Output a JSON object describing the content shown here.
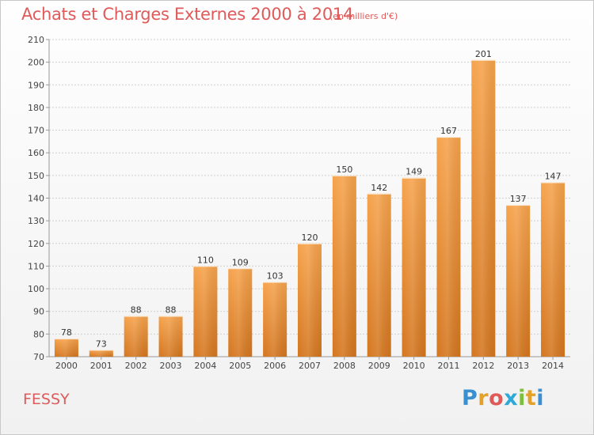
{
  "header": {
    "title": "Achats et Charges Externes 2000 à 2014",
    "subtitle": "(en milliers d'€)"
  },
  "footer": {
    "commune": "FESSY",
    "logo_letters": [
      "P",
      "r",
      "o",
      "x",
      "i",
      "t",
      "i"
    ],
    "logo_colors": [
      "#3a8fd0",
      "#e3a12a",
      "#e05a5a",
      "#2da8d8",
      "#7cbf3a",
      "#e3a12a",
      "#3a8fd0"
    ]
  },
  "chart_data": {
    "type": "bar",
    "categories": [
      "2000",
      "2001",
      "2002",
      "2003",
      "2004",
      "2005",
      "2006",
      "2007",
      "2008",
      "2009",
      "2010",
      "2011",
      "2012",
      "2013",
      "2014"
    ],
    "values": [
      78,
      73,
      88,
      88,
      110,
      109,
      103,
      120,
      150,
      142,
      149,
      167,
      201,
      137,
      147
    ],
    "ylim": [
      70,
      210
    ],
    "yticks": [
      70,
      80,
      90,
      100,
      110,
      120,
      130,
      140,
      150,
      160,
      170,
      180,
      190,
      200,
      210
    ],
    "grid": "horizontal-dashed",
    "bar_color_top": "#f6a34c",
    "bar_color_bottom": "#d4761f",
    "xlabel": "",
    "ylabel": ""
  }
}
